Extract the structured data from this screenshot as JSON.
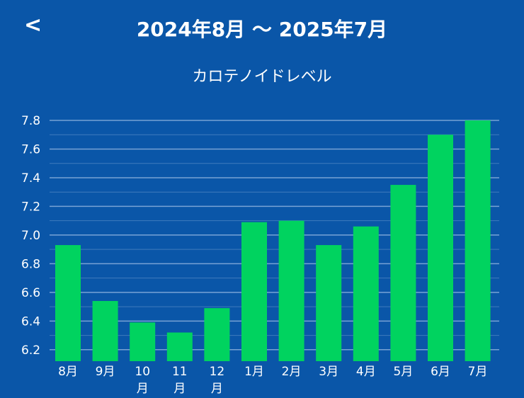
{
  "header": {
    "back_label": "<",
    "period": "2024年8月 〜 2025年7月"
  },
  "colors": {
    "background": "#0a56a8",
    "bar": "#00d35f",
    "grid": "#7fa8d8"
  },
  "chart_data": {
    "type": "bar",
    "title": "カロテノイドレベル",
    "xlabel": "",
    "ylabel": "",
    "categories": [
      "8月",
      "9月",
      "10月",
      "11月",
      "12月",
      "1月",
      "2月",
      "3月",
      "4月",
      "5月",
      "6月",
      "7月"
    ],
    "category_lines": [
      [
        "8月"
      ],
      [
        "9月"
      ],
      [
        "10",
        "月"
      ],
      [
        "11",
        "月"
      ],
      [
        "12",
        "月"
      ],
      [
        "1月"
      ],
      [
        "2月"
      ],
      [
        "3月"
      ],
      [
        "4月"
      ],
      [
        "5月"
      ],
      [
        "6月"
      ],
      [
        "7月"
      ]
    ],
    "values": [
      6.93,
      6.54,
      6.39,
      6.32,
      6.49,
      7.09,
      7.1,
      6.93,
      7.06,
      7.35,
      7.7,
      7.8
    ],
    "ylim": [
      6.12,
      7.8
    ],
    "yticks": [
      "6.2",
      "6.4",
      "6.6",
      "6.8",
      "7.0",
      "7.2",
      "7.4",
      "7.6",
      "7.8"
    ],
    "grid": true
  }
}
